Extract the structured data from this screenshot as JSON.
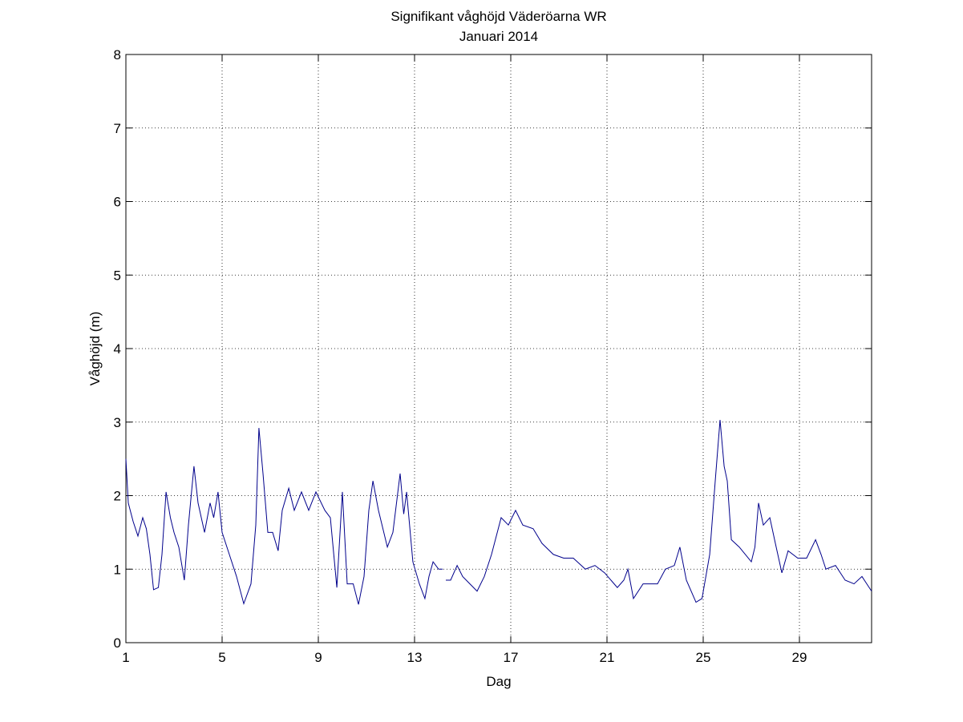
{
  "chart_data": {
    "type": "line",
    "title": "Signifikant våghöjd Väderöarna WR",
    "subtitle": "Januari 2014",
    "xlabel": "Dag",
    "ylabel": "Våghöjd (m)",
    "x": [
      1,
      1.1,
      1.3,
      1.5,
      1.7,
      1.85,
      2.0,
      2.15,
      2.35,
      2.5,
      2.67,
      2.85,
      3.0,
      3.2,
      3.43,
      3.6,
      3.83,
      4.0,
      4.27,
      4.5,
      4.65,
      4.83,
      5.0,
      5.3,
      5.6,
      5.9,
      6.2,
      6.4,
      6.53,
      6.7,
      6.9,
      7.1,
      7.33,
      7.5,
      7.77,
      8.0,
      8.3,
      8.6,
      8.9,
      9.27,
      9.5,
      9.77,
      10.0,
      10.2,
      10.45,
      10.67,
      10.9,
      11.1,
      11.27,
      11.5,
      11.87,
      12.1,
      12.4,
      12.55,
      12.67,
      12.93,
      13.2,
      13.43,
      13.6,
      13.77,
      14.0,
      14.17,
      14.23,
      14.3,
      14.5,
      14.77,
      15.0,
      15.3,
      15.6,
      15.9,
      16.2,
      16.6,
      16.9,
      17.2,
      17.5,
      17.93,
      18.3,
      18.77,
      19.2,
      19.6,
      20.1,
      20.5,
      20.9,
      21.43,
      21.7,
      21.87,
      22.1,
      22.5,
      23.1,
      23.43,
      23.8,
      24.03,
      24.3,
      24.7,
      24.95,
      25.27,
      25.5,
      25.7,
      25.87,
      26.0,
      26.17,
      26.5,
      27.0,
      27.15,
      27.3,
      27.5,
      27.77,
      28.0,
      28.27,
      28.53,
      28.93,
      29.3,
      29.67,
      29.9,
      30.1,
      30.5,
      30.9,
      31.27,
      31.6,
      31.8,
      32
    ],
    "values": [
      2.5,
      1.9,
      1.65,
      1.45,
      1.7,
      1.55,
      1.2,
      0.72,
      0.75,
      1.2,
      2.05,
      1.7,
      1.5,
      1.3,
      0.85,
      1.6,
      2.4,
      1.9,
      1.5,
      1.9,
      1.7,
      2.05,
      1.5,
      1.2,
      0.9,
      0.53,
      0.8,
      1.6,
      2.92,
      2.3,
      1.5,
      1.5,
      1.25,
      1.8,
      2.1,
      1.8,
      2.05,
      1.8,
      2.05,
      1.8,
      1.7,
      0.75,
      2.05,
      0.8,
      0.8,
      0.52,
      0.9,
      1.8,
      2.2,
      1.8,
      1.3,
      1.5,
      2.3,
      1.75,
      2.05,
      1.1,
      0.8,
      0.6,
      0.9,
      1.1,
      1.0,
      1.0,
      null,
      0.85,
      0.85,
      1.05,
      0.9,
      0.8,
      0.7,
      0.9,
      1.2,
      1.7,
      1.6,
      1.8,
      1.6,
      1.55,
      1.35,
      1.2,
      1.15,
      1.15,
      1.0,
      1.05,
      0.95,
      0.75,
      0.85,
      1.0,
      0.6,
      0.8,
      0.8,
      1.0,
      1.05,
      1.3,
      0.85,
      0.55,
      0.6,
      1.2,
      2.2,
      3.03,
      2.4,
      2.2,
      1.4,
      1.3,
      1.1,
      1.3,
      1.9,
      1.6,
      1.7,
      1.35,
      0.95,
      1.25,
      1.15,
      1.15,
      1.4,
      1.2,
      1.0,
      1.05,
      0.85,
      0.8,
      0.9,
      0.8,
      0.7
    ],
    "color": "#00008b",
    "xlim": [
      1,
      32
    ],
    "xticks": [
      1,
      5,
      9,
      13,
      17,
      21,
      25,
      29
    ],
    "ylim": [
      0,
      8
    ],
    "yticks": [
      0,
      1,
      2,
      3,
      4,
      5,
      6,
      7,
      8
    ],
    "grid": true
  }
}
